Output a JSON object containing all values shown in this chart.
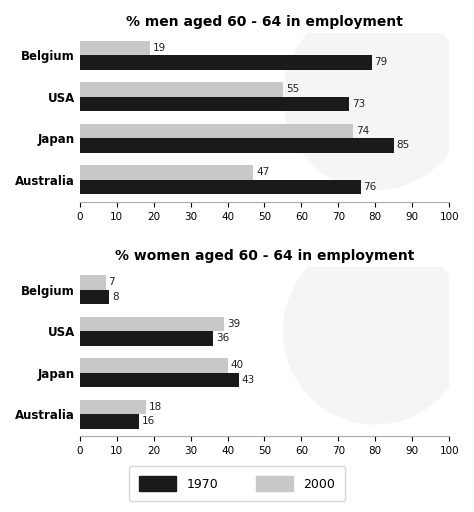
{
  "men_title": "% men aged 60 - 64 in employment",
  "women_title": "% women aged 60 - 64 in employment",
  "countries": [
    "Belgium",
    "USA",
    "Japan",
    "Australia"
  ],
  "men_1970": [
    79,
    73,
    85,
    76
  ],
  "men_2000": [
    19,
    55,
    74,
    47
  ],
  "women_1970": [
    8,
    36,
    43,
    16
  ],
  "women_2000": [
    7,
    39,
    40,
    18
  ],
  "color_1970": "#1a1a1a",
  "color_2000": "#c8c8c8",
  "xlim": [
    0,
    100
  ],
  "xticks": [
    0,
    10,
    20,
    30,
    40,
    50,
    60,
    70,
    80,
    90,
    100
  ],
  "bar_height": 0.35,
  "label_fontsize": 7.5,
  "title_fontsize": 10,
  "tick_fontsize": 7.5,
  "country_fontsize": 8.5,
  "legend_1970": "1970",
  "legend_2000": "2000",
  "bg_color": "#ffffff"
}
